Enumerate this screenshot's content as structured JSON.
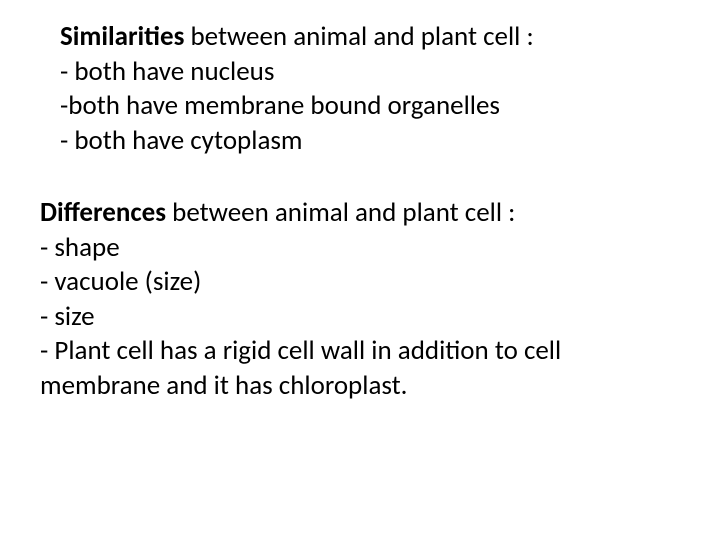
{
  "text_color": "#000000",
  "background_color": "#ffffff",
  "font_family": "Calibri, 'Segoe UI', Arial, sans-serif",
  "font_size_pt": 27,
  "line_height": 1.28,
  "section1": {
    "heading_bold": "Similarities",
    "heading_rest": " between animal and plant cell :",
    "lines": [
      "- both have nucleus",
      "-both have membrane bound organelles",
      "- both have cytoplasm"
    ]
  },
  "section2": {
    "heading_bold": "Differences",
    "heading_rest": " between animal and plant cell :",
    "lines": [
      "-  shape",
      "-  vacuole (size)",
      "-  size",
      "-  Plant cell has a rigid cell wall in addition to cell membrane and it has chloroplast."
    ]
  }
}
